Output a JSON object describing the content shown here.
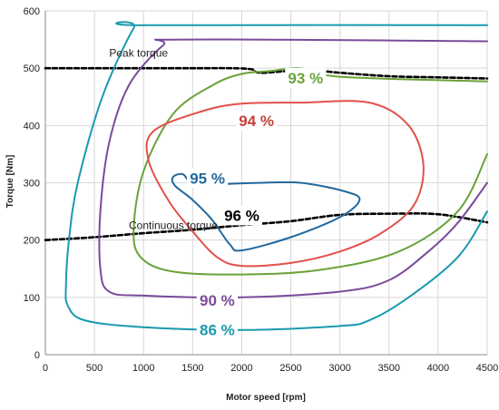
{
  "chart_data": {
    "type": "line",
    "xlabel": "Motor speed [rpm]",
    "ylabel": "Torque [Nm]",
    "xlim": [
      0,
      4500
    ],
    "ylim": [
      0,
      600
    ],
    "x_ticks": [
      "0",
      "500",
      "1000",
      "1500",
      "2000",
      "2500",
      "3000",
      "3500",
      "4000",
      "4500"
    ],
    "y_ticks": [
      "0",
      "100",
      "200",
      "300",
      "400",
      "500",
      "600"
    ],
    "grid": true,
    "series": [
      {
        "name": "Peak torque",
        "kind": "label-line",
        "color": "#000000",
        "dashed": true,
        "points": [
          [
            0,
            500
          ],
          [
            500,
            500
          ],
          [
            1000,
            500
          ],
          [
            1500,
            500
          ],
          [
            1900,
            500
          ],
          [
            2100,
            498
          ],
          [
            2200,
            492
          ],
          [
            2650,
            497
          ],
          [
            3000,
            492
          ],
          [
            3500,
            486
          ],
          [
            4000,
            484
          ],
          [
            4500,
            482
          ]
        ]
      },
      {
        "name": "Continuous torque",
        "kind": "label-line",
        "color": "#000000",
        "dashed": true,
        "points": [
          [
            0,
            200
          ],
          [
            500,
            205
          ],
          [
            1000,
            212
          ],
          [
            1500,
            218
          ],
          [
            2000,
            226
          ],
          [
            2500,
            233
          ],
          [
            3000,
            244
          ],
          [
            3500,
            246
          ],
          [
            4000,
            245
          ],
          [
            4500,
            231
          ]
        ]
      },
      {
        "name": "86 %",
        "kind": "contour",
        "color": "#1a9aaf",
        "closed": false,
        "points": [
          [
            4500,
            575
          ],
          [
            1000,
            575
          ],
          [
            900,
            570
          ],
          [
            580,
            450
          ],
          [
            330,
            300
          ],
          [
            240,
            200
          ],
          [
            210,
            120
          ],
          [
            230,
            85
          ],
          [
            400,
            60
          ],
          [
            1000,
            48
          ],
          [
            2000,
            43
          ],
          [
            3000,
            50
          ],
          [
            3300,
            60
          ],
          [
            3700,
            100
          ],
          [
            4200,
            170
          ],
          [
            4500,
            250
          ]
        ]
      },
      {
        "name": "90 %",
        "kind": "contour",
        "color": "#7a4a9a",
        "closed": false,
        "points": [
          [
            4500,
            547
          ],
          [
            1400,
            550
          ],
          [
            1200,
            540
          ],
          [
            850,
            470
          ],
          [
            650,
            370
          ],
          [
            560,
            250
          ],
          [
            560,
            150
          ],
          [
            650,
            110
          ],
          [
            1000,
            103
          ],
          [
            2000,
            100
          ],
          [
            3000,
            110
          ],
          [
            3500,
            130
          ],
          [
            3900,
            180
          ],
          [
            4200,
            230
          ],
          [
            4500,
            300
          ]
        ]
      },
      {
        "name": "93 %",
        "kind": "contour",
        "color": "#6aa23a",
        "closed": false,
        "points": [
          [
            4500,
            477
          ],
          [
            3000,
            485
          ],
          [
            2600,
            500
          ],
          [
            2300,
            495
          ],
          [
            2000,
            490
          ],
          [
            1700,
            470
          ],
          [
            1300,
            420
          ],
          [
            1000,
            320
          ],
          [
            900,
            220
          ],
          [
            970,
            170
          ],
          [
            1300,
            145
          ],
          [
            2000,
            140
          ],
          [
            2800,
            148
          ],
          [
            3600,
            180
          ],
          [
            4200,
            250
          ],
          [
            4500,
            350
          ]
        ]
      },
      {
        "name": "94 %",
        "kind": "contour",
        "color": "#e2504a",
        "closed": true,
        "points": [
          [
            3300,
            440
          ],
          [
            2600,
            440
          ],
          [
            2000,
            438
          ],
          [
            1600,
            425
          ],
          [
            1100,
            390
          ],
          [
            1050,
            340
          ],
          [
            1250,
            270
          ],
          [
            1500,
            215
          ],
          [
            1750,
            170
          ],
          [
            2000,
            155
          ],
          [
            2500,
            160
          ],
          [
            3000,
            180
          ],
          [
            3400,
            210
          ],
          [
            3750,
            260
          ],
          [
            3850,
            330
          ],
          [
            3700,
            400
          ],
          [
            3300,
            440
          ]
        ]
      },
      {
        "name": "95 %",
        "kind": "contour",
        "color": "#22689c",
        "closed": true,
        "points": [
          [
            1500,
            300
          ],
          [
            1400,
            315
          ],
          [
            1300,
            310
          ],
          [
            1320,
            295
          ],
          [
            1500,
            270
          ],
          [
            1700,
            235
          ],
          [
            1880,
            192
          ],
          [
            2000,
            182
          ],
          [
            2500,
            205
          ],
          [
            3000,
            240
          ],
          [
            3200,
            270
          ],
          [
            3050,
            285
          ],
          [
            2600,
            300
          ],
          [
            2200,
            300
          ],
          [
            1800,
            298
          ],
          [
            1500,
            300
          ]
        ]
      }
    ],
    "annotations": [
      {
        "text": "Peak torque",
        "x": 650,
        "y": 525
      },
      {
        "text": "Continuous torque",
        "x": 850,
        "y": 224
      },
      {
        "text": "96 %",
        "x": 2000,
        "y": 240
      },
      {
        "text": "95 %",
        "x": 1650,
        "y": 305
      },
      {
        "text": "94 %",
        "x": 2150,
        "y": 405
      },
      {
        "text": "93 %",
        "x": 2650,
        "y": 480
      },
      {
        "text": "90 %",
        "x": 1750,
        "y": 92
      },
      {
        "text": "86 %",
        "x": 1750,
        "y": 40
      }
    ],
    "label_colors": {
      "96 %": "#000000",
      "95 %": "#22689c",
      "94 %": "#c9403a",
      "93 %": "#6aa23a",
      "90 %": "#7a4a9a",
      "86 %": "#1a9aaf",
      "Peak torque": "#222222",
      "Continuous torque": "#222222"
    }
  }
}
